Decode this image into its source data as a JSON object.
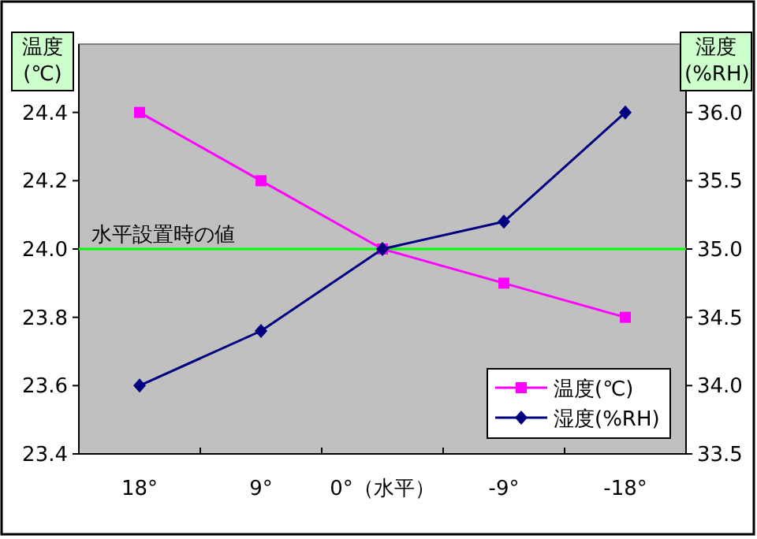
{
  "chart_data": {
    "type": "line",
    "ylabel": "温度(℃)",
    "y2label": "湿度(%RH)",
    "categories": [
      "18°",
      "9°",
      "0°（水平）",
      "-9°",
      "-18°"
    ],
    "series": [
      {
        "name": "温度(℃)",
        "color": "#ff00ff",
        "marker": "square",
        "values": [
          24.4,
          24.2,
          24.0,
          23.9,
          23.8
        ]
      },
      {
        "name": "湿度(%RH)",
        "color": "#000080",
        "marker": "diamond",
        "axis": "y2",
        "values": [
          34.0,
          34.4,
          35.0,
          35.2,
          36.0
        ]
      }
    ],
    "ylim": [
      23.4,
      24.6
    ],
    "yticks": [
      {
        "value": 23.4,
        "label": "23.4"
      },
      {
        "value": 23.6,
        "label": "23.6"
      },
      {
        "value": 23.8,
        "label": "23.8"
      },
      {
        "value": 24.0,
        "label": "24.0"
      },
      {
        "value": 24.2,
        "label": "24.2"
      },
      {
        "value": 24.4,
        "label": "24.4"
      }
    ],
    "y2lim": [
      33.5,
      36.5
    ],
    "y2ticks": [
      {
        "value": 33.5,
        "label": "33.5"
      },
      {
        "value": 34.0,
        "label": "34.0"
      },
      {
        "value": 34.5,
        "label": "34.5"
      },
      {
        "value": 35.0,
        "label": "35.0"
      },
      {
        "value": 35.5,
        "label": "35.5"
      },
      {
        "value": 36.0,
        "label": "36.0"
      }
    ],
    "ref_lines": [
      {
        "axis": "y",
        "value": 24.0,
        "label": "水平設置時の値",
        "color": "#00ff00"
      }
    ],
    "legend": "bottom right",
    "grid": false
  }
}
